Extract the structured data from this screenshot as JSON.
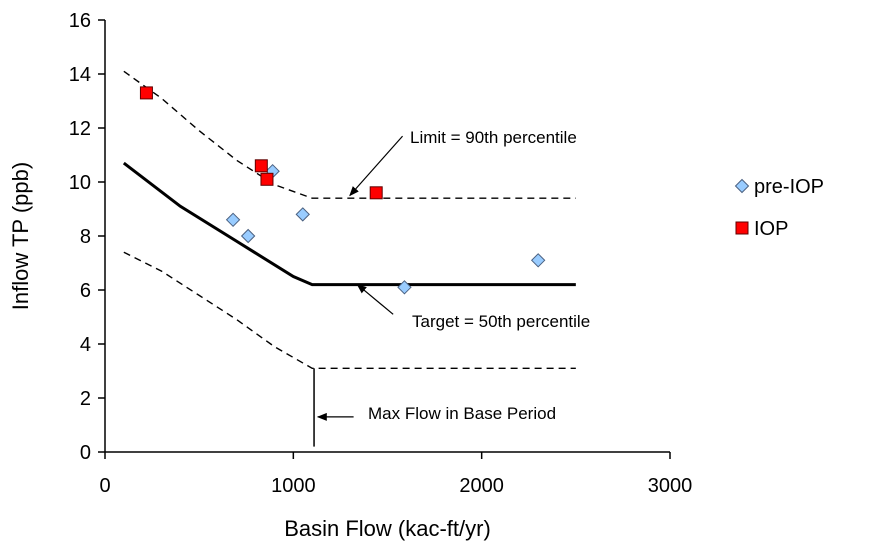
{
  "chart_data": {
    "type": "scatter",
    "title": "",
    "xlabel": "Basin Flow (kac-ft/yr)",
    "ylabel": "Inflow TP (ppb)",
    "xlim": [
      0,
      3000
    ],
    "ylim": [
      0,
      16
    ],
    "xticks": [
      0,
      1000,
      2000,
      3000
    ],
    "yticks": [
      0,
      2,
      4,
      6,
      8,
      10,
      12,
      14,
      16
    ],
    "xtick_labels": [
      "0",
      "1000",
      "2000",
      "3000"
    ],
    "ytick_labels": [
      "0",
      "2",
      "4",
      "6",
      "8",
      "10",
      "12",
      "14",
      "16"
    ],
    "grid": false,
    "legend_position": "right",
    "series": [
      {
        "name": "pre-IOP",
        "marker": "diamond",
        "color": "#99ccff",
        "x": [
          680,
          760,
          890,
          1050,
          1590,
          2300
        ],
        "y": [
          8.6,
          8.0,
          10.4,
          8.8,
          6.1,
          7.1
        ]
      },
      {
        "name": "IOP",
        "marker": "square",
        "color": "#ff0000",
        "x": [
          220,
          830,
          860,
          1440
        ],
        "y": [
          13.3,
          10.6,
          10.1,
          9.6
        ]
      }
    ],
    "lines": [
      {
        "style": "dashed",
        "x": [
          100,
          300,
          500,
          700,
          900,
          1100,
          2500
        ],
        "y": [
          14.1,
          13.1,
          11.9,
          10.8,
          9.9,
          9.4,
          9.4
        ]
      },
      {
        "style": "solid",
        "x": [
          100,
          400,
          700,
          1000,
          1100,
          2500
        ],
        "y": [
          10.7,
          9.1,
          7.8,
          6.5,
          6.2,
          6.2
        ]
      },
      {
        "style": "dashed",
        "x": [
          100,
          300,
          500,
          700,
          900,
          1100,
          2500
        ],
        "y": [
          7.4,
          6.7,
          5.8,
          4.9,
          3.9,
          3.1,
          3.1
        ]
      }
    ],
    "annotations": [
      {
        "text": "Limit = 90th percentile",
        "arrow_from": [
          1580,
          11.7
        ],
        "arrow_to": [
          1300,
          9.5
        ]
      },
      {
        "text": "Target = 50th percentile",
        "arrow_from": [
          1530,
          5.1
        ],
        "arrow_to": [
          1340,
          6.2
        ]
      },
      {
        "text": "Max Flow in Base Period",
        "arrow_from": [
          1320,
          1.3
        ],
        "arrow_to": [
          1130,
          1.3
        ]
      }
    ],
    "vline": {
      "x": 1110,
      "y": [
        0.2,
        3.1
      ]
    }
  }
}
